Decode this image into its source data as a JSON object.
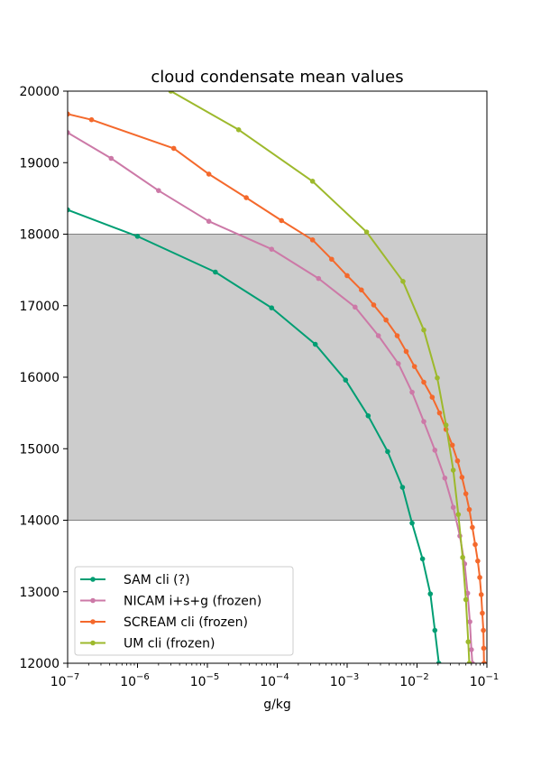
{
  "chart_data": {
    "type": "line",
    "title": "cloud condensate mean values",
    "xlabel": "g/kg",
    "ylabel": "",
    "xscale": "log",
    "xlim": [
      1e-07,
      0.1
    ],
    "ylim": [
      12000,
      20000
    ],
    "xticks": [
      {
        "value": 1e-07,
        "base": "10",
        "exp": "−7"
      },
      {
        "value": 1e-06,
        "base": "10",
        "exp": "−6"
      },
      {
        "value": 1e-05,
        "base": "10",
        "exp": "−5"
      },
      {
        "value": 0.0001,
        "base": "10",
        "exp": "−4"
      },
      {
        "value": 0.001,
        "base": "10",
        "exp": "−3"
      },
      {
        "value": 0.01,
        "base": "10",
        "exp": "−2"
      },
      {
        "value": 0.1,
        "base": "10",
        "exp": "−1"
      }
    ],
    "yticks": [
      12000,
      13000,
      14000,
      15000,
      16000,
      17000,
      18000,
      19000,
      20000
    ],
    "shaded_band": {
      "y0": 14000,
      "y1": 18000,
      "color": "#cccccc"
    },
    "legend_position": "lower-left",
    "series": [
      {
        "name": "SAM cli (?)",
        "color": "#009E73",
        "points": [
          [
            1e-07,
            18340
          ],
          [
            1e-06,
            17970
          ],
          [
            1.3e-05,
            17470
          ],
          [
            8.3e-05,
            16970
          ],
          [
            0.00035,
            16460
          ],
          [
            0.00095,
            15960
          ],
          [
            0.002,
            15460
          ],
          [
            0.0038,
            14960
          ],
          [
            0.0062,
            14460
          ],
          [
            0.0085,
            13960
          ],
          [
            0.012,
            13460
          ],
          [
            0.0155,
            12970
          ],
          [
            0.018,
            12460
          ],
          [
            0.0205,
            12000
          ]
        ]
      },
      {
        "name": "NICAM i+s+g (frozen)",
        "color": "#CC79A7",
        "points": [
          [
            1e-07,
            19420
          ],
          [
            4.2e-07,
            19060
          ],
          [
            2e-06,
            18610
          ],
          [
            1.05e-05,
            18180
          ],
          [
            8.3e-05,
            17790
          ],
          [
            0.00039,
            17380
          ],
          [
            0.0013,
            16980
          ],
          [
            0.0028,
            16580
          ],
          [
            0.0054,
            16190
          ],
          [
            0.0085,
            15790
          ],
          [
            0.0125,
            15380
          ],
          [
            0.018,
            14980
          ],
          [
            0.025,
            14590
          ],
          [
            0.033,
            14180
          ],
          [
            0.041,
            13780
          ],
          [
            0.048,
            13390
          ],
          [
            0.053,
            12980
          ],
          [
            0.057,
            12580
          ],
          [
            0.06,
            12190
          ],
          [
            0.062,
            12000
          ]
        ]
      },
      {
        "name": "SCREAM cli (frozen)",
        "color": "#F4692C",
        "points": [
          [
            1e-07,
            19680
          ],
          [
            2.2e-07,
            19600
          ],
          [
            3.3e-06,
            19200
          ],
          [
            1.05e-05,
            18840
          ],
          [
            3.6e-05,
            18510
          ],
          [
            0.000115,
            18190
          ],
          [
            0.00032,
            17920
          ],
          [
            0.0006,
            17650
          ],
          [
            0.001,
            17420
          ],
          [
            0.0016,
            17220
          ],
          [
            0.0024,
            17010
          ],
          [
            0.0036,
            16800
          ],
          [
            0.0052,
            16580
          ],
          [
            0.007,
            16360
          ],
          [
            0.0092,
            16150
          ],
          [
            0.0125,
            15930
          ],
          [
            0.0165,
            15720
          ],
          [
            0.021,
            15500
          ],
          [
            0.026,
            15270
          ],
          [
            0.032,
            15050
          ],
          [
            0.038,
            14830
          ],
          [
            0.044,
            14600
          ],
          [
            0.05,
            14370
          ],
          [
            0.056,
            14150
          ],
          [
            0.062,
            13900
          ],
          [
            0.068,
            13660
          ],
          [
            0.074,
            13430
          ],
          [
            0.079,
            13200
          ],
          [
            0.083,
            12960
          ],
          [
            0.086,
            12700
          ],
          [
            0.089,
            12460
          ],
          [
            0.09,
            12210
          ],
          [
            0.091,
            12000
          ]
        ]
      },
      {
        "name": "UM cli (frozen)",
        "color": "#9DB92C",
        "points": [
          [
            3e-06,
            20000
          ],
          [
            2.8e-05,
            19460
          ],
          [
            0.00032,
            18740
          ],
          [
            0.0019,
            18030
          ],
          [
            0.0063,
            17340
          ],
          [
            0.0125,
            16660
          ],
          [
            0.0195,
            15990
          ],
          [
            0.026,
            15330
          ],
          [
            0.033,
            14700
          ],
          [
            0.039,
            14080
          ],
          [
            0.045,
            13480
          ],
          [
            0.05,
            12890
          ],
          [
            0.054,
            12300
          ],
          [
            0.056,
            12000
          ]
        ]
      }
    ]
  }
}
